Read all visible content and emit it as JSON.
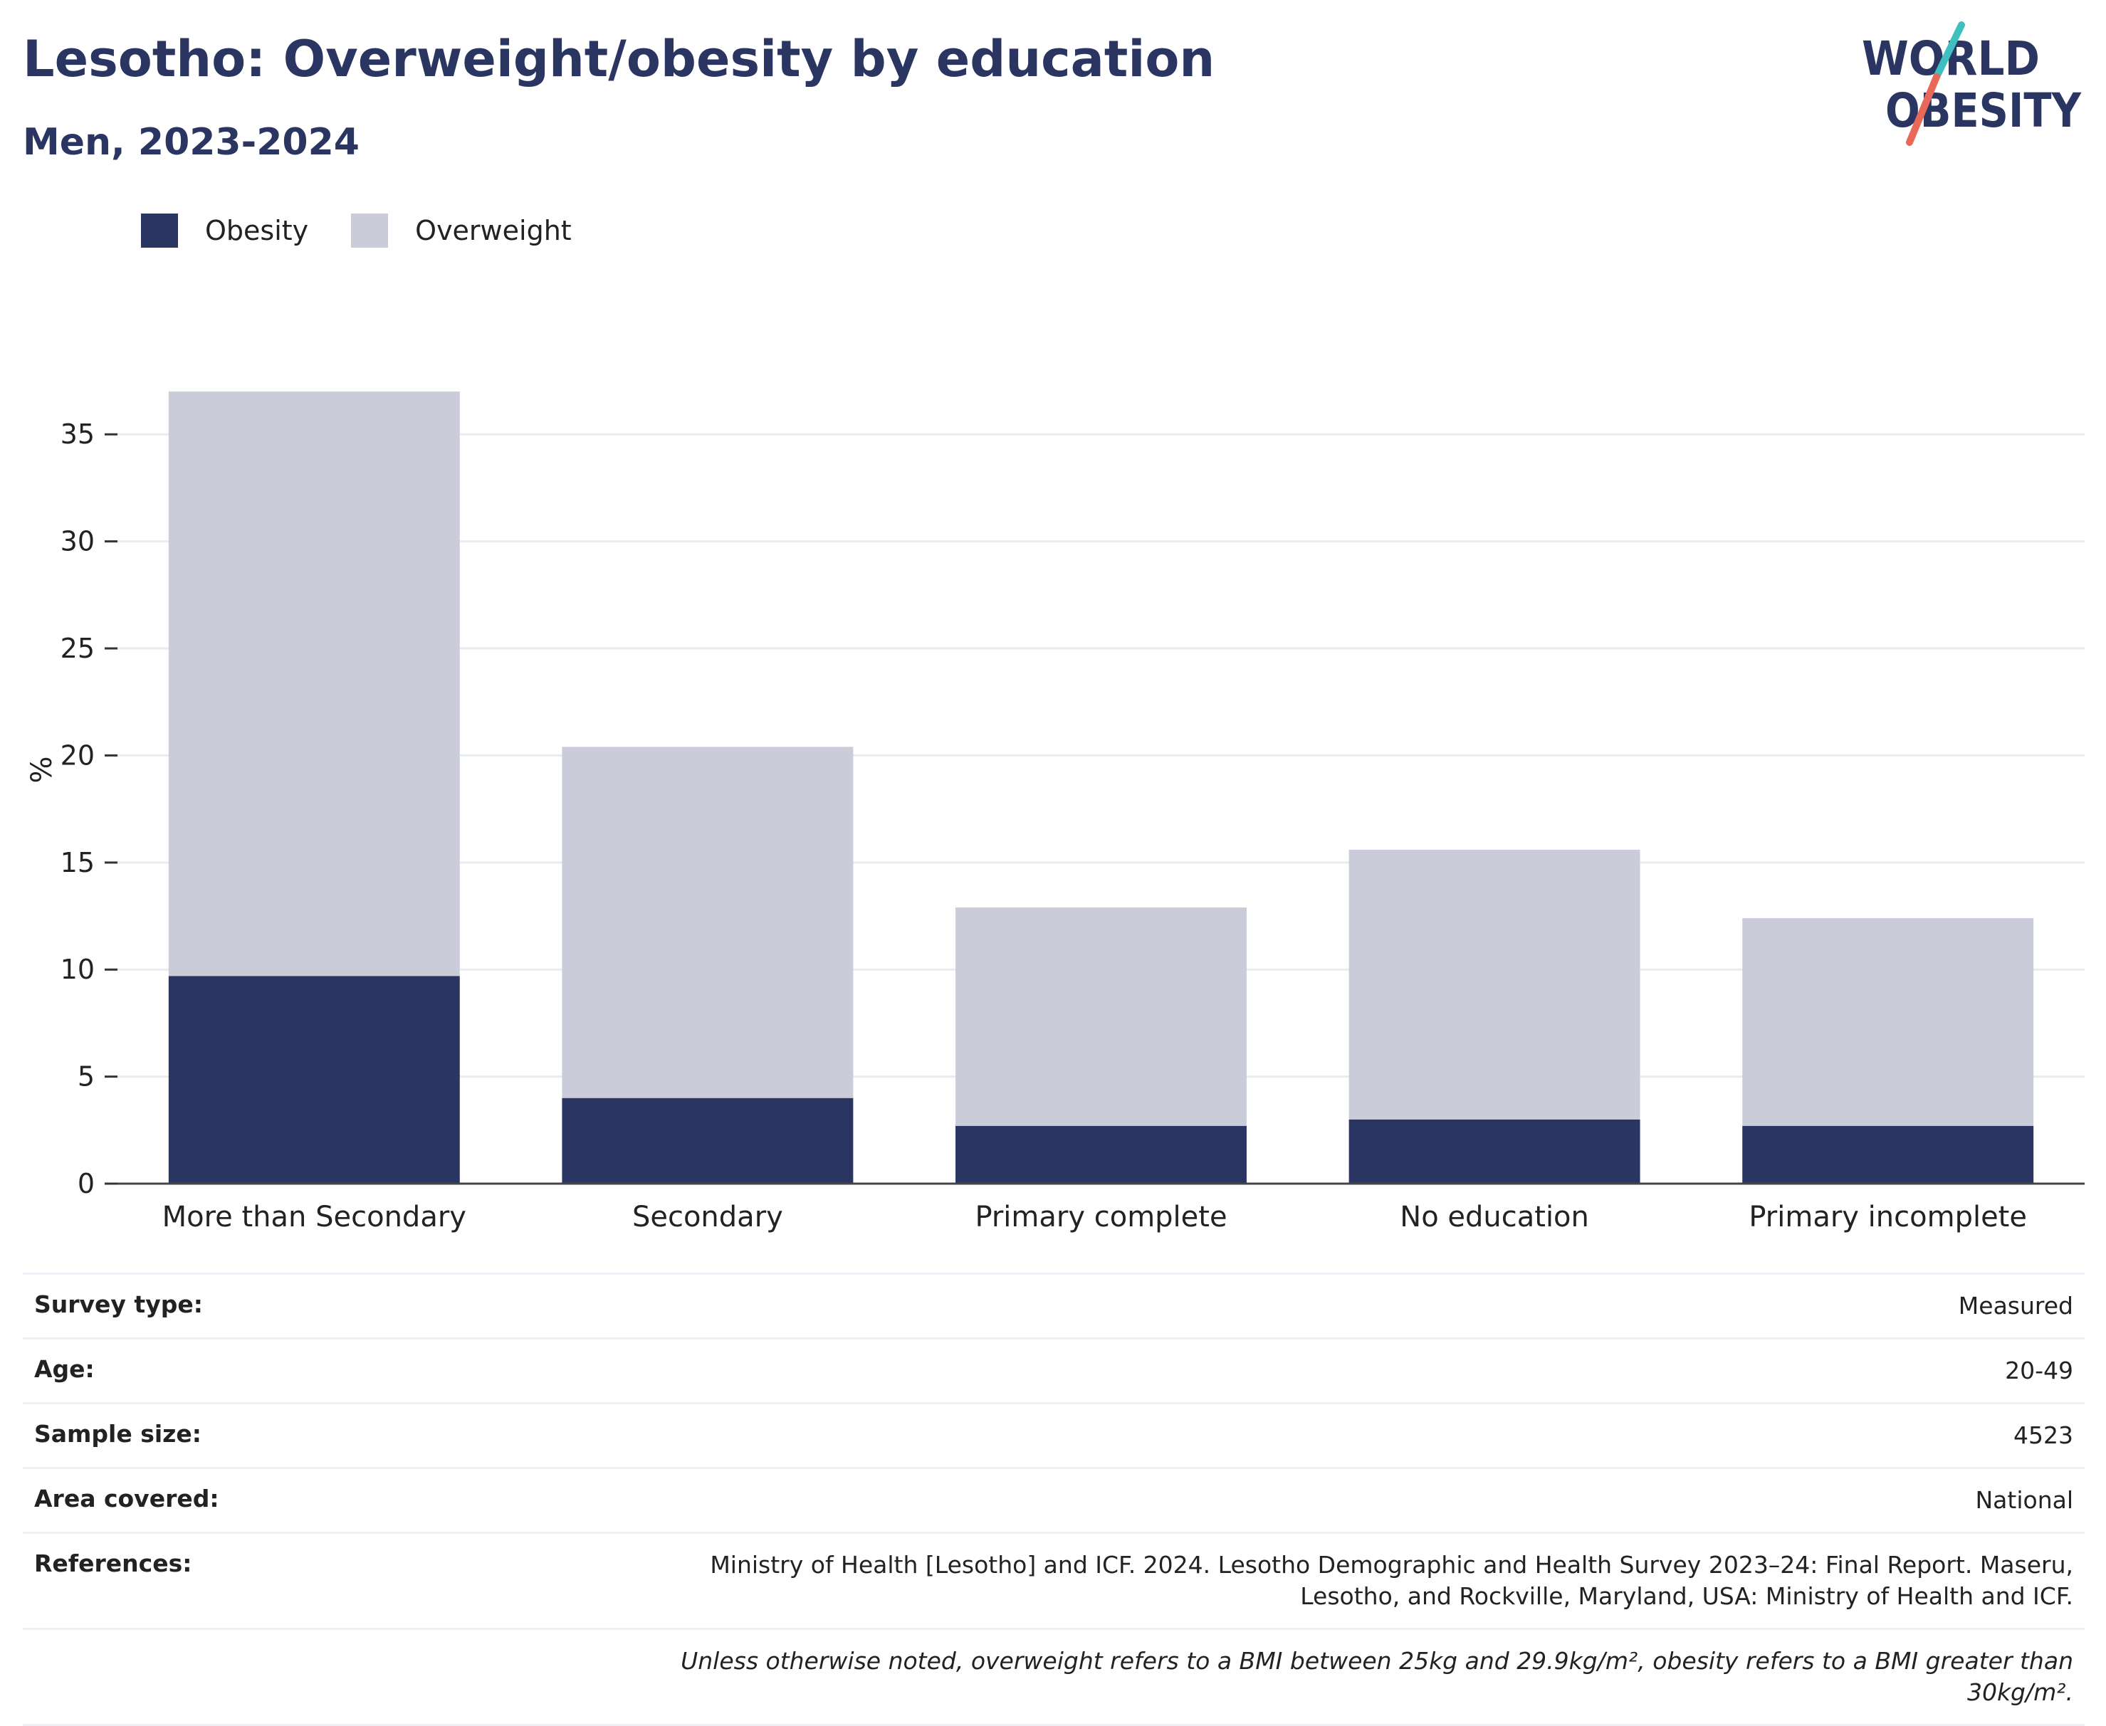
{
  "header": {
    "title": "Lesotho: Overweight/obesity by education",
    "subtitle": "Men, 2023-2024"
  },
  "logo": {
    "line1": "WORLD",
    "line2": "OBESITY",
    "colors": {
      "text": "#2a3562",
      "slash_top": "#3fbfc0",
      "slash_bottom": "#e8685a"
    }
  },
  "legend": [
    {
      "label": "Obesity",
      "color": "#2a3562"
    },
    {
      "label": "Overweight",
      "color": "#cacdd9"
    }
  ],
  "chart_data": {
    "type": "bar",
    "stacked": true,
    "categories": [
      "More than Secondary",
      "Secondary",
      "Primary complete",
      "No education",
      "Primary incomplete"
    ],
    "series": [
      {
        "name": "Obesity",
        "color": "#2a3562",
        "values": [
          9.7,
          4.0,
          2.7,
          3.0,
          2.7
        ]
      },
      {
        "name": "Overweight",
        "color": "#cacdd9",
        "values": [
          27.3,
          16.4,
          10.2,
          12.6,
          9.7
        ]
      }
    ],
    "ylabel": "%",
    "ylim": [
      0,
      38
    ],
    "yticks": [
      0,
      5,
      10,
      15,
      20,
      25,
      30,
      35
    ],
    "grid": true,
    "legend_position": "top-left"
  },
  "info": [
    {
      "label": "Survey type:",
      "value": "Measured"
    },
    {
      "label": "Age:",
      "value": "20-49"
    },
    {
      "label": "Sample size:",
      "value": "4523"
    },
    {
      "label": "Area covered:",
      "value": "National"
    },
    {
      "label": "References:",
      "value": "Ministry of Health [Lesotho] and ICF. 2024. Lesotho Demographic and Health Survey 2023–24: Final Report. Maseru, Lesotho, and Rockville, Maryland, USA: Ministry of Health and ICF."
    }
  ],
  "note": "Unless otherwise noted, overweight refers to a BMI between 25kg and 29.9kg/m², obesity refers to a BMI greater than 30kg/m²."
}
